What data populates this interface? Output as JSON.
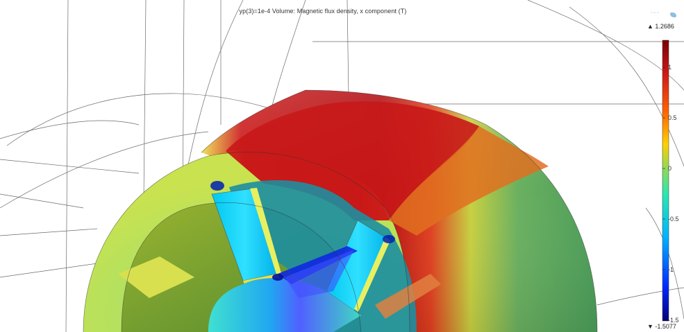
{
  "plot": {
    "title": "yp(3)=1e-4  Volume: Magnetic flux density, x component (T)"
  },
  "colorbar": {
    "max_label": "▲ 1.2686",
    "min_label": "▼ -1.5077",
    "max_value": 1.2686,
    "min_value": -1.5077,
    "ticks": [
      {
        "value": 1,
        "label": "1"
      },
      {
        "value": 0.5,
        "label": "0.5"
      },
      {
        "value": 0,
        "label": "0"
      },
      {
        "value": -0.5,
        "label": "-0.5"
      },
      {
        "value": -1,
        "label": "-1"
      },
      {
        "value": -1.5,
        "label": "-1.5"
      }
    ],
    "colors": [
      "#00007a",
      "#0028ff",
      "#00b4ff",
      "#00ffd0",
      "#48d060",
      "#c8e040",
      "#ffd000",
      "#ff6000",
      "#d01818",
      "#7a0000"
    ]
  }
}
